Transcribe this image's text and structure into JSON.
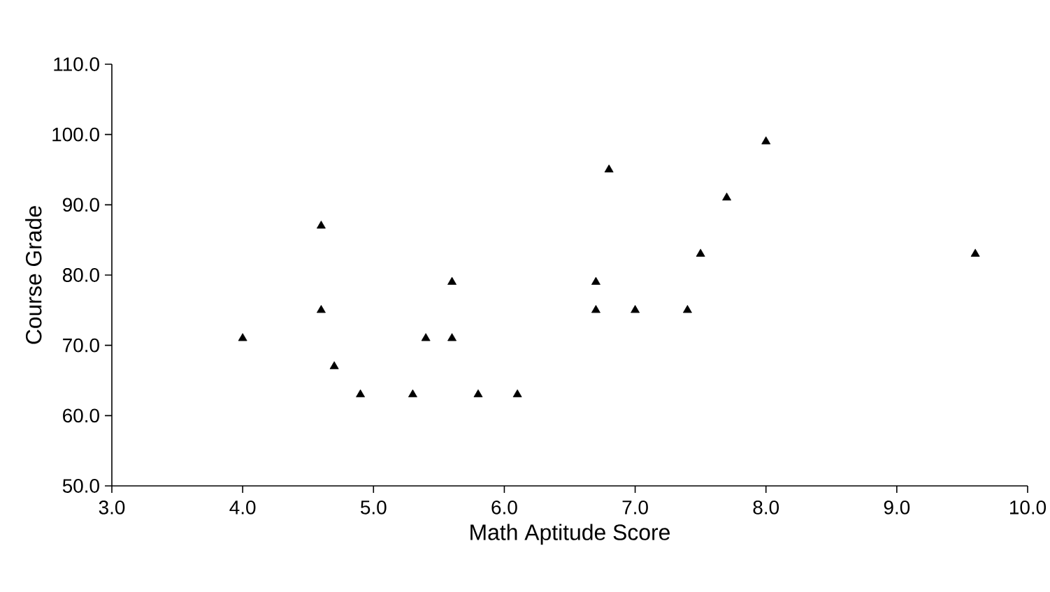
{
  "chart_data": {
    "type": "scatter",
    "xlabel": "Math Aptitude Score",
    "ylabel": "Course Grade",
    "x": [
      4.0,
      4.6,
      4.6,
      4.7,
      4.9,
      5.3,
      5.4,
      5.6,
      5.6,
      5.8,
      6.1,
      6.7,
      6.7,
      6.8,
      7.0,
      7.4,
      7.5,
      7.7,
      8.0,
      9.6
    ],
    "values": [
      71,
      87,
      75,
      67,
      63,
      63,
      71,
      79,
      71,
      63,
      63,
      79,
      75,
      95,
      75,
      75,
      83,
      91,
      99,
      83
    ],
    "color": "#000000",
    "marker": "triangle",
    "xlim": [
      3.0,
      10.0
    ],
    "xticks": [
      {
        "value": 3,
        "label": "3.0"
      },
      {
        "value": 4,
        "label": "4.0"
      },
      {
        "value": 5,
        "label": "5.0"
      },
      {
        "value": 6,
        "label": "6.0"
      },
      {
        "value": 7,
        "label": "7.0"
      },
      {
        "value": 8,
        "label": "8.0"
      },
      {
        "value": 9,
        "label": "9.0"
      },
      {
        "value": 10,
        "label": "10.0"
      }
    ],
    "ylim": [
      50.0,
      110.0
    ],
    "yticks": [
      {
        "value": 50,
        "label": "50.0"
      },
      {
        "value": 60,
        "label": "60.0"
      },
      {
        "value": 70,
        "label": "70.0"
      },
      {
        "value": 80,
        "label": "80.0"
      },
      {
        "value": 90,
        "label": "90.0"
      },
      {
        "value": 100,
        "label": "100.0"
      },
      {
        "value": 110,
        "label": "110.0"
      }
    ]
  }
}
